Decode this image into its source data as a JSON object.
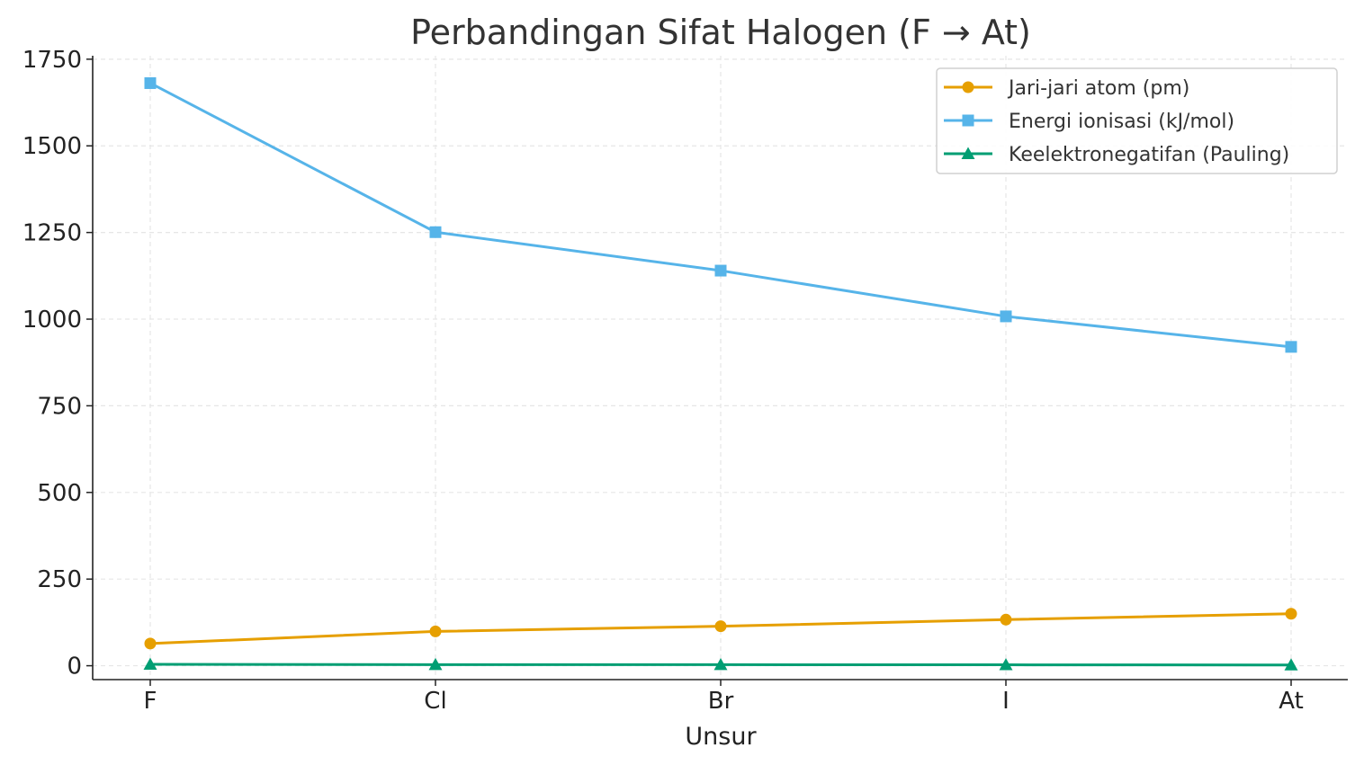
{
  "chart_data": {
    "type": "line",
    "title": "Perbandingan Sifat Halogen (F → At)",
    "xlabel": "Unsur",
    "ylabel": "",
    "categories": [
      "F",
      "Cl",
      "Br",
      "I",
      "At"
    ],
    "ylim": [
      -40,
      1760
    ],
    "yticks": [
      0,
      250,
      500,
      750,
      1000,
      1250,
      1500,
      1750
    ],
    "grid": true,
    "legend_position": "top-right",
    "series": [
      {
        "name": "Jari-jari atom (pm)",
        "values": [
          64,
          99,
          114,
          133,
          150
        ],
        "color": "#E69F00",
        "marker": "circle"
      },
      {
        "name": "Energi ionisasi (kJ/mol)",
        "values": [
          1681,
          1251,
          1140,
          1008,
          920
        ],
        "color": "#56B4E9",
        "marker": "square"
      },
      {
        "name": "Keelektronegatifan (Pauling)",
        "values": [
          3.98,
          3.16,
          2.96,
          2.66,
          2.2
        ],
        "color": "#009E73",
        "marker": "triangle"
      }
    ]
  }
}
